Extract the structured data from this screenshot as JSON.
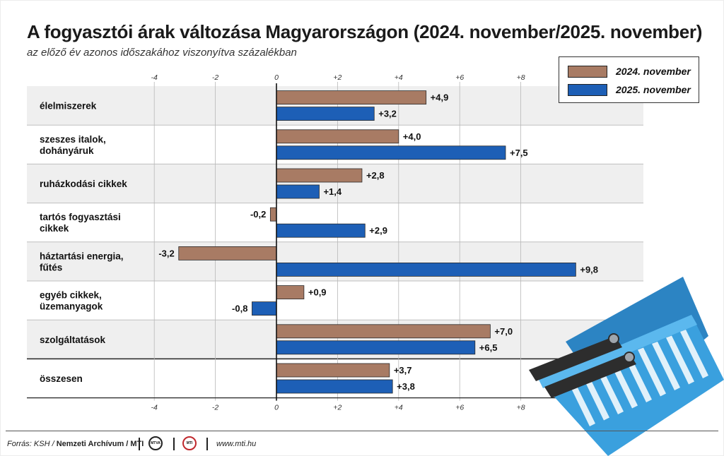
{
  "title": "A fogyasztói árak változása Magyarországon (2024. november/2025. november)",
  "subtitle": "az előző év azonos időszakához viszonyítva százalékban",
  "chart_data": {
    "type": "bar",
    "orientation": "horizontal",
    "categories": [
      [
        "élelmiszerek"
      ],
      [
        "szeszes italok,",
        "dohányáruk"
      ],
      [
        "ruházkodási cikkek"
      ],
      [
        "tartós fogyasztási",
        "cikkek"
      ],
      [
        "háztartási energia,",
        "fűtés"
      ],
      [
        "egyéb cikkek,",
        "üzemanyagok"
      ],
      [
        "szolgáltatások"
      ],
      [
        "összesen"
      ]
    ],
    "series": [
      {
        "name": "2024. november",
        "color": "#a87b64",
        "values": [
          4.9,
          4.0,
          2.8,
          -0.2,
          -3.2,
          0.9,
          7.0,
          3.7
        ],
        "labels": [
          "+4,9",
          "+4,0",
          "+2,8",
          "-0,2",
          "-3,2",
          "+0,9",
          "+7,0",
          "+3,7"
        ]
      },
      {
        "name": "2025. november",
        "color": "#1d5fb6",
        "values": [
          3.2,
          7.5,
          1.4,
          2.9,
          9.8,
          -0.8,
          6.5,
          3.8
        ],
        "labels": [
          "+3,2",
          "+7,5",
          "+1,4",
          "+2,9",
          "+9,8",
          "-0,8",
          "+6,5",
          "+3,8"
        ]
      }
    ],
    "xlim": [
      -9,
      12
    ],
    "ticks": [
      -4,
      -2,
      0,
      2,
      4,
      6,
      8
    ],
    "tick_labels": [
      "-4",
      "-2",
      "0",
      "+2",
      "+4",
      "+6",
      "+8"
    ],
    "grid": true,
    "legend_position": "top-right"
  },
  "legend": {
    "items": [
      {
        "label": "2024. november",
        "color": "#a87b64"
      },
      {
        "label": "2025. november",
        "color": "#1d5fb6"
      }
    ]
  },
  "footer": {
    "source_prefix": "Forrás: KSH / ",
    "source_bold": "Nemzeti Archívum / MTI",
    "logo1": "MTVA",
    "logo2": "MTI",
    "site": "www.mti.hu"
  },
  "basket": {
    "body_color": "#3aa0de",
    "dark_color": "#2c84c3",
    "handle_color": "#2d2d2d"
  }
}
